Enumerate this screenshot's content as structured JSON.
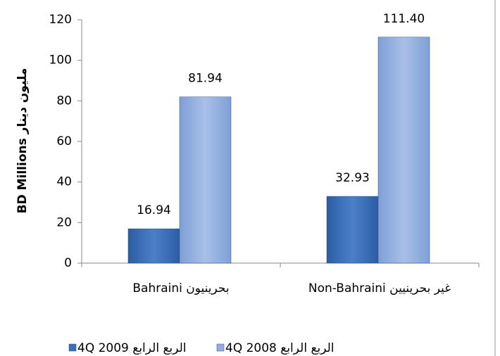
{
  "chart_data": {
    "type": "bar",
    "y_label": "BD Millions مليون دينار",
    "categories": [
      "Bahraini  بحرينيون",
      "Non-Bahraini غير بحرينيين"
    ],
    "series": [
      {
        "name": "4Q 2009 الربع الرابع",
        "color": "#3c70b8",
        "values": [
          16.94,
          32.93
        ],
        "value_labels": [
          "16.94",
          "32.93"
        ]
      },
      {
        "name": "4Q 2008 الربع الرابع",
        "color": "#93aedd",
        "values": [
          81.94,
          111.4
        ],
        "value_labels": [
          "81.94",
          "111.40"
        ]
      }
    ],
    "ylim": [
      0,
      120
    ],
    "yticks": [
      0,
      20,
      40,
      60,
      80,
      100,
      120
    ],
    "legend": "bottom"
  }
}
